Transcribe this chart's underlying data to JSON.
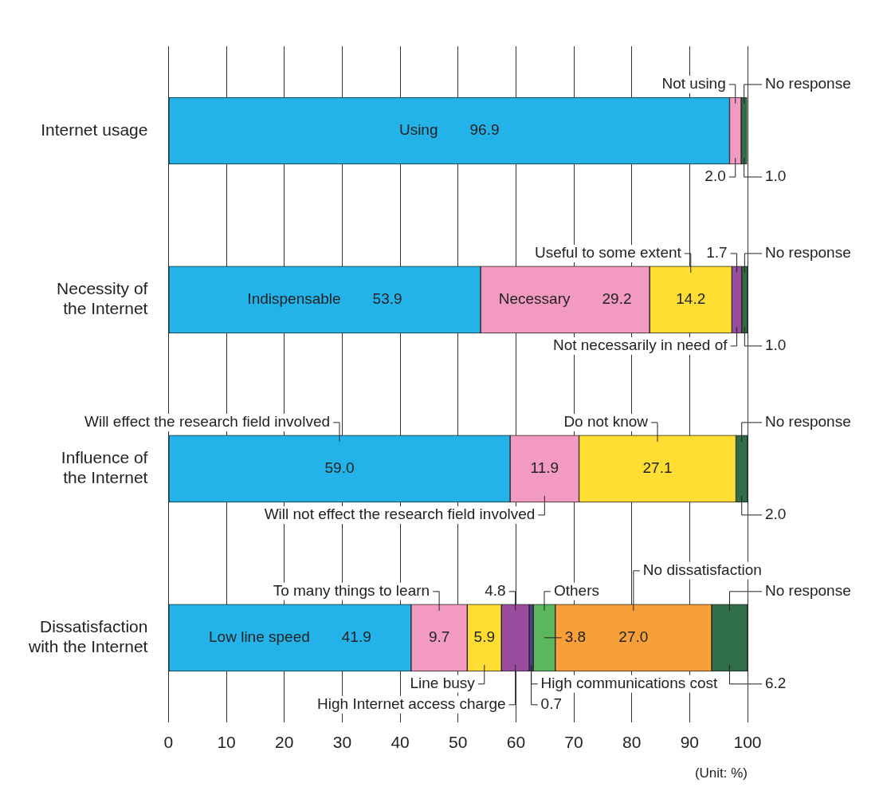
{
  "chart_data": {
    "type": "bar",
    "orientation": "horizontal",
    "stacked": true,
    "categories": [
      "Internet usage",
      "Necessity of the Internet",
      "Influence of the Internet",
      "Dissatisfaction with the Internet"
    ],
    "series": [
      {
        "values": [
          96.9,
          53.9,
          59.0,
          41.9
        ],
        "colors": [
          "#23b3e8",
          "#23b3e8",
          "#23b3e8",
          "#23b3e8"
        ],
        "value_labels": [
          "96.9",
          "53.9",
          "59.0",
          "41.9"
        ]
      },
      {
        "values": [
          2.0,
          29.2,
          11.9,
          9.7
        ],
        "colors": [
          "#f39ac2",
          "#f39ac2",
          "#f39ac2",
          "#f39ac2"
        ],
        "value_labels": [
          "2.0",
          "29.2",
          "11.9",
          "9.7"
        ]
      },
      {
        "values": [
          1.0,
          14.2,
          27.1,
          5.9
        ],
        "colors": [
          "#2f6e48",
          "#ffdd33",
          "#ffdd33",
          "#ffdd33"
        ],
        "value_labels": [
          "1.0",
          "14.2",
          "27.1",
          "5.9"
        ]
      },
      {
        "values": [
          null,
          1.7,
          2.0,
          4.8
        ],
        "colors": [
          null,
          "#9a4c9e",
          "#2f6e48",
          "#9a4c9e"
        ],
        "value_labels": [
          null,
          "1.7",
          "2.0",
          "4.8"
        ]
      },
      {
        "values": [
          null,
          1.0,
          null,
          0.7
        ],
        "colors": [
          null,
          "#2f6e48",
          null,
          "#4c3f8e"
        ],
        "value_labels": [
          null,
          "1.0",
          null,
          "0.7"
        ]
      },
      {
        "values": [
          null,
          null,
          null,
          3.8
        ],
        "colors": [
          null,
          null,
          null,
          "#5bb75b"
        ],
        "value_labels": [
          null,
          null,
          null,
          "3.8"
        ]
      },
      {
        "values": [
          null,
          null,
          null,
          27.0
        ],
        "colors": [
          null,
          null,
          null,
          "#f7a03a"
        ],
        "value_labels": [
          null,
          null,
          null,
          "27.0"
        ]
      },
      {
        "values": [
          null,
          null,
          null,
          6.2
        ],
        "colors": [
          null,
          null,
          null,
          "#2f6e48"
        ],
        "value_labels": [
          null,
          null,
          null,
          "6.2"
        ]
      }
    ],
    "xlim": [
      0,
      100
    ],
    "xticks": [
      0,
      10,
      20,
      30,
      40,
      50,
      60,
      70,
      80,
      90,
      100
    ],
    "grid": "x",
    "legend": false,
    "annotations": [
      "(Unit: %)",
      "Using",
      "Not using",
      {
        "text": "No response",
        "x": 99.4,
        "y": "Internet usage"
      },
      "Indispensable",
      "Necessary",
      "Useful to some extent",
      "Not necessarily in need of",
      {
        "text": "No response",
        "x": 99.5,
        "y": "Necessity of the Internet"
      },
      "Will effect the research field involved",
      "Will not effect the research field involved",
      "Do not know",
      "No response",
      "Low line speed",
      "To many things to learn",
      "Line busy",
      "High Internet access charge",
      {
        "text": "High communications cost",
        "x": 62.65,
        "y": "Dissatisfaction with the Internet"
      },
      "Others",
      "No dissatisfaction",
      "No response"
    ]
  }
}
